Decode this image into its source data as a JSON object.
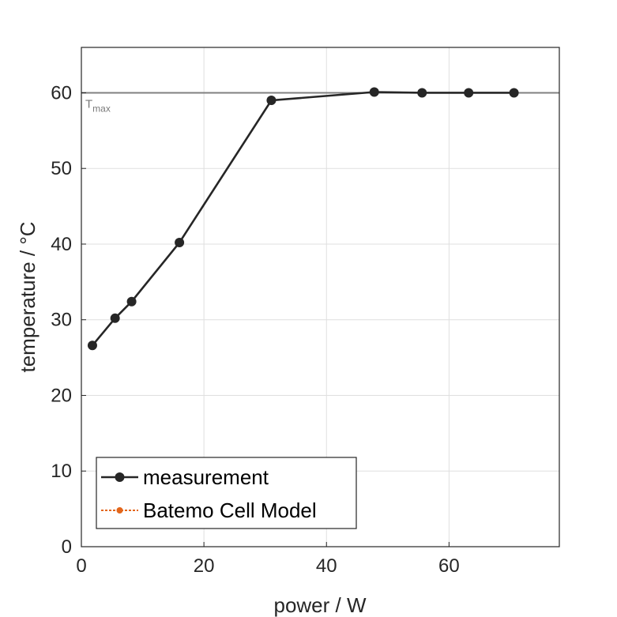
{
  "chart_data": {
    "type": "line",
    "title": "",
    "xlabel": "power / W",
    "ylabel": "temperature / °C",
    "xlim": [
      0,
      78
    ],
    "ylim": [
      0,
      66
    ],
    "xticks": [
      0,
      20,
      40,
      60
    ],
    "yticks": [
      0,
      10,
      20,
      30,
      40,
      50,
      60
    ],
    "grid": true,
    "legend_position": "bottom-left",
    "series": [
      {
        "name": "measurement",
        "color": "#262626",
        "style": "solid",
        "marker": "circle",
        "x": [
          1.8,
          5.5,
          8.2,
          16.0,
          31.0,
          47.8,
          55.6,
          63.2,
          70.6
        ],
        "y": [
          26.6,
          30.2,
          32.4,
          40.2,
          59.0,
          60.1,
          60.0,
          60.0,
          60.0
        ]
      },
      {
        "name": "Batemo Cell Model",
        "color": "#e3661b",
        "style": "dotted",
        "marker": "circle",
        "x": [],
        "y": []
      }
    ],
    "reference_line": {
      "y": 60,
      "color": "#808080",
      "label": "T",
      "label_sub": "max"
    }
  }
}
